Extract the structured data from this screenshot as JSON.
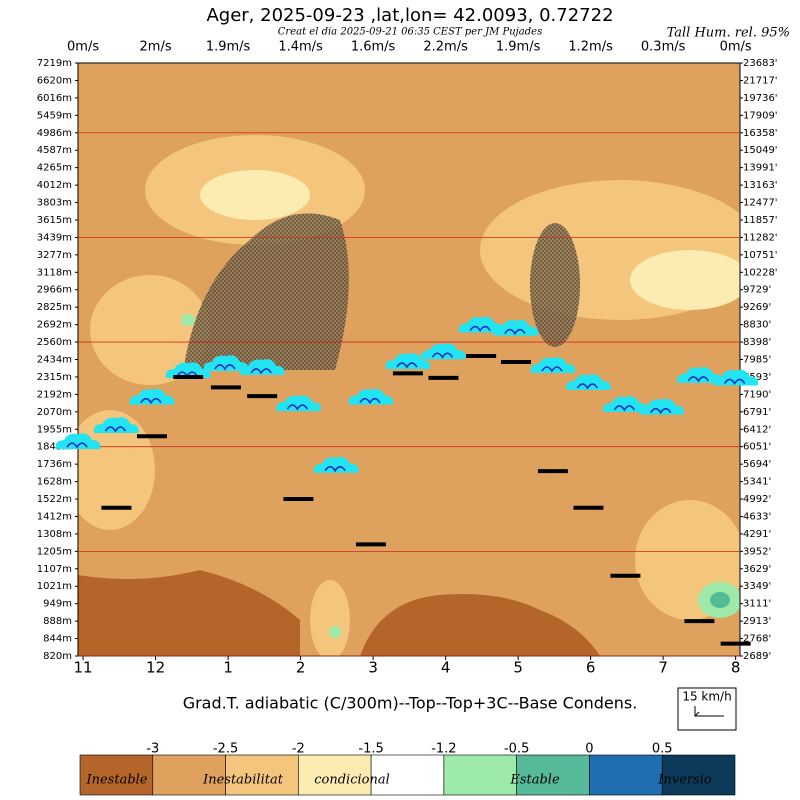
{
  "chart_data": {
    "type": "sounding",
    "title": "Ager, 2025-09-23 ,lat,lon= 42.0093, 0.72722",
    "subtitle": "Creat el dia 2025-09-21 06:35 CEST per JM Pujades",
    "top_right_label": "Tall Hum. rel. 95%",
    "top_labels": [
      "0m/s",
      "2m/s",
      "1.9m/s",
      "1.4m/s",
      "1.6m/s",
      "2.2m/s",
      "1.9m/s",
      "1.2m/s",
      "0.3m/s",
      "0m/s"
    ],
    "x_label": "Grad.T. adiabatic (C/300m)--Top--Top+3C--Base Condens.",
    "legend_label": "15 km/h",
    "xlim": [
      -0.07,
      9.06
    ],
    "xticks": [
      {
        "value": 0,
        "label": "11"
      },
      {
        "value": 1,
        "label": "12"
      },
      {
        "value": 2,
        "label": "1"
      },
      {
        "value": 3,
        "label": "2"
      },
      {
        "value": 4,
        "label": "3"
      },
      {
        "value": 5,
        "label": "4"
      },
      {
        "value": 6,
        "label": "5"
      },
      {
        "value": 7,
        "label": "6"
      },
      {
        "value": 8,
        "label": "7"
      },
      {
        "value": 9,
        "label": "8"
      }
    ],
    "ylim": [
      820,
      7219
    ],
    "yticks": [
      {
        "value": 7219,
        "label": "7219m"
      },
      {
        "value": 6620,
        "label": "6620m"
      },
      {
        "value": 6016,
        "label": "6016m"
      },
      {
        "value": 5459,
        "label": "5459m"
      },
      {
        "value": 4986,
        "label": "4986m"
      },
      {
        "value": 4587,
        "label": "4587m"
      },
      {
        "value": 4265,
        "label": "4265m"
      },
      {
        "value": 4012,
        "label": "4012m"
      },
      {
        "value": 3803,
        "label": "3803m"
      },
      {
        "value": 3615,
        "label": "3615m"
      },
      {
        "value": 3439,
        "label": "3439m"
      },
      {
        "value": 3277,
        "label": "3277m"
      },
      {
        "value": 3118,
        "label": "3118m"
      },
      {
        "value": 2966,
        "label": "2966m"
      },
      {
        "value": 2825,
        "label": "2825m"
      },
      {
        "value": 2692,
        "label": "2692m"
      },
      {
        "value": 2560,
        "label": "2560m"
      },
      {
        "value": 2434,
        "label": "2434m"
      },
      {
        "value": 2315,
        "label": "2315m"
      },
      {
        "value": 2192,
        "label": "2192m"
      },
      {
        "value": 2070,
        "label": "2070m"
      },
      {
        "value": 1955,
        "label": "1955m"
      },
      {
        "value": 1845,
        "label": "1845m"
      },
      {
        "value": 1736,
        "label": "1736m"
      },
      {
        "value": 1628,
        "label": "1628m"
      },
      {
        "value": 1522,
        "label": "1522m"
      },
      {
        "value": 1412,
        "label": "1412m"
      },
      {
        "value": 1308,
        "label": "1308m"
      },
      {
        "value": 1205,
        "label": "1205m"
      },
      {
        "value": 1107,
        "label": "1107m"
      },
      {
        "value": 1021,
        "label": "1021m"
      },
      {
        "value": 949,
        "label": "949m"
      },
      {
        "value": 888,
        "label": "888m"
      },
      {
        "value": 844,
        "label": "844m"
      },
      {
        "value": 820,
        "label": "820m"
      }
    ],
    "y2ticks": [
      {
        "value": 23683,
        "label": "23683'"
      },
      {
        "value": 21717,
        "label": "21717'"
      },
      {
        "value": 19736,
        "label": "19736'"
      },
      {
        "value": 17909,
        "label": "17909'"
      },
      {
        "value": 16358,
        "label": "16358'"
      },
      {
        "value": 15049,
        "label": "15049'"
      },
      {
        "value": 13991,
        "label": "13991'"
      },
      {
        "value": 13163,
        "label": "13163'"
      },
      {
        "value": 12477,
        "label": "12477'"
      },
      {
        "value": 11857,
        "label": "11857'"
      },
      {
        "value": 11282,
        "label": "11282'"
      },
      {
        "value": 10751,
        "label": "10751'"
      },
      {
        "value": 10228,
        "label": "10228'"
      },
      {
        "value": 9729,
        "label": "9729'"
      },
      {
        "value": 9269,
        "label": "9269'"
      },
      {
        "value": 8830,
        "label": "8830'"
      },
      {
        "value": 8398,
        "label": "8398'"
      },
      {
        "value": 7985,
        "label": "7985'"
      },
      {
        "value": 7593,
        "label": "7593'"
      },
      {
        "value": 7190,
        "label": "7190'"
      },
      {
        "value": 6791,
        "label": "6791'"
      },
      {
        "value": 6412,
        "label": "6412'"
      },
      {
        "value": 6051,
        "label": "6051'"
      },
      {
        "value": 5694,
        "label": "5694'"
      },
      {
        "value": 5341,
        "label": "5341'"
      },
      {
        "value": 4992,
        "label": "4992'"
      },
      {
        "value": 4633,
        "label": "4633'"
      },
      {
        "value": 4291,
        "label": "4291'"
      },
      {
        "value": 3952,
        "label": "3952'"
      },
      {
        "value": 3629,
        "label": "3629'"
      },
      {
        "value": 3349,
        "label": "3349'"
      },
      {
        "value": 3111,
        "label": "3111'"
      },
      {
        "value": 2913,
        "label": "2913'"
      },
      {
        "value": 2768,
        "label": "2768'"
      },
      {
        "value": 2689,
        "label": "2689'"
      }
    ],
    "series": [
      {
        "kind": "cloud",
        "color": "#22e4f2",
        "x": [
          -0.07,
          0.46,
          0.95,
          1.45,
          1.97,
          2.47,
          2.97,
          3.49,
          3.97,
          4.48,
          4.97,
          5.49,
          5.97,
          6.48,
          6.97,
          7.48,
          7.98,
          8.5,
          9.0
        ],
        "values": [
          1861,
          1963,
          2155,
          2341,
          2390,
          2363,
          2110,
          1714,
          2155,
          2403,
          2472,
          2670,
          2647,
          2376,
          2258,
          2104,
          2085,
          2308,
          2290
        ]
      },
      {
        "kind": "base",
        "color": "#000000",
        "x": [
          0.46,
          0.95,
          1.45,
          1.97,
          2.47,
          2.97,
          3.97,
          4.48,
          4.97,
          5.49,
          5.97,
          6.48,
          6.97,
          7.48,
          8.5,
          9.0
        ],
        "values": [
          1467,
          1911,
          2315,
          2241,
          2180,
          1522,
          1246,
          2339,
          2308,
          2459,
          2417,
          1693,
          1467,
          1073,
          888,
          837
        ]
      }
    ],
    "colorbar": {
      "ticks": [
        -3,
        -2.5,
        -2,
        -1.5,
        -1.2,
        -0.5,
        0,
        0.5
      ],
      "colors": [
        "#b4662a",
        "#dea25e",
        "#f4c57c",
        "#fdecb2",
        "#ffffff",
        "#9deaaa",
        "#55b99a",
        "#1f6fb0",
        "#0c3a5a"
      ],
      "labels": [
        "Inestable",
        "Inestabilitat",
        "condicional",
        "Estable",
        "Inversio"
      ]
    }
  }
}
